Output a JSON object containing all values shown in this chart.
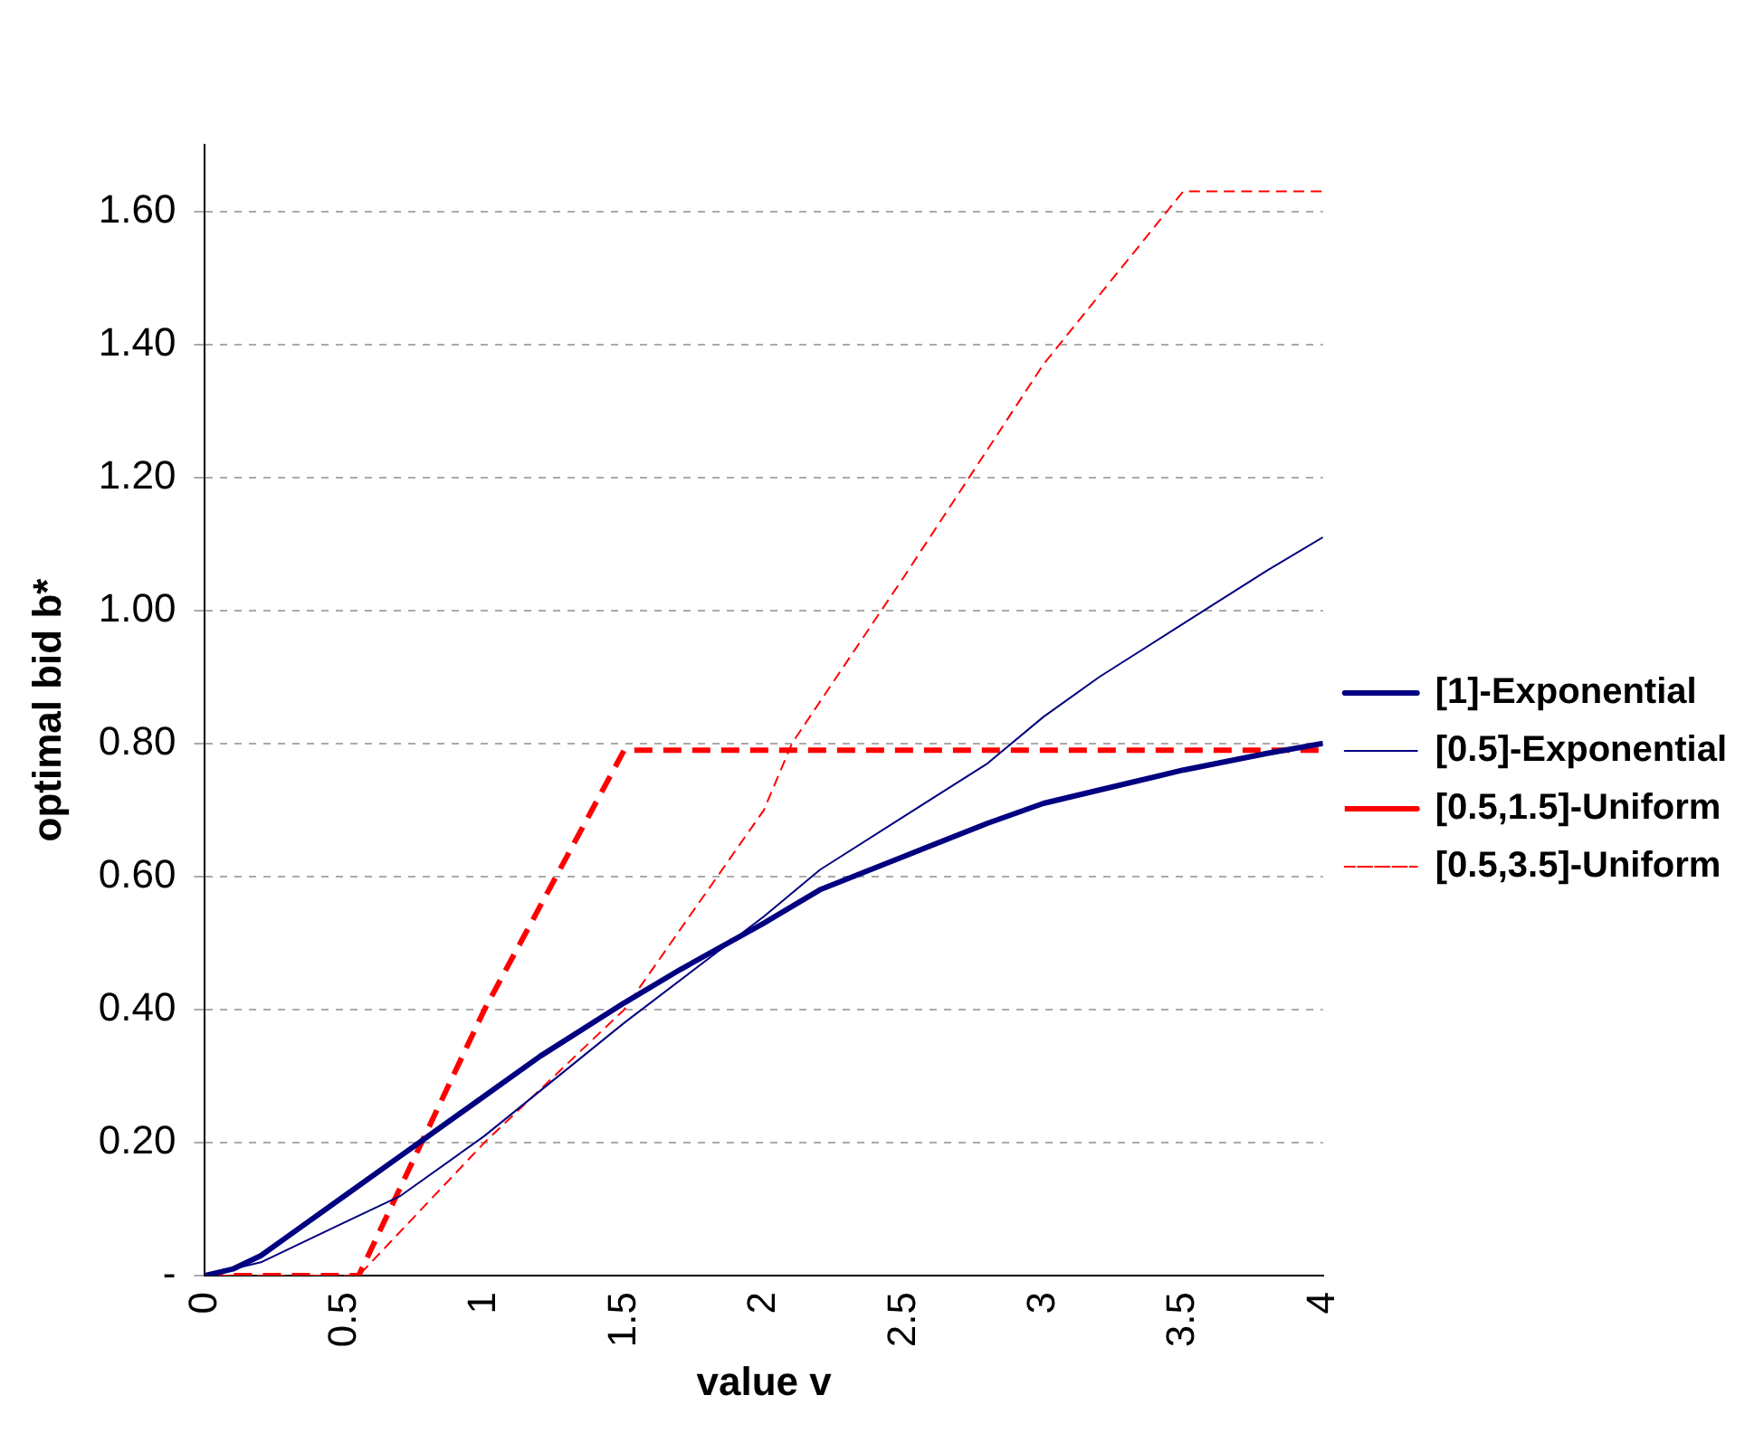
{
  "chart_data": {
    "type": "line",
    "xlabel": "value v",
    "ylabel": "optimal bid b*",
    "xlim": [
      0,
      4
    ],
    "xticks": [
      0,
      0.5,
      1,
      1.5,
      2,
      2.5,
      3,
      3.5,
      4
    ],
    "ylim": [
      0,
      1.7
    ],
    "yticks": [
      {
        "value": 0,
        "label": "-"
      },
      {
        "value": 0.2,
        "label": "0.20"
      },
      {
        "value": 0.4,
        "label": "0.40"
      },
      {
        "value": 0.6,
        "label": "0.60"
      },
      {
        "value": 0.8,
        "label": "0.80"
      },
      {
        "value": 1.0,
        "label": "1.00"
      },
      {
        "value": 1.2,
        "label": "1.20"
      },
      {
        "value": 1.4,
        "label": "1.40"
      },
      {
        "value": 1.6,
        "label": "1.60"
      }
    ],
    "grid": "y",
    "legend": "right",
    "marker": "none",
    "series": [
      {
        "name": "[1]-Exponential",
        "color": "#000080",
        "line_style": "solid",
        "x": [
          0,
          0.1,
          0.2,
          0.3,
          0.5,
          0.7,
          1,
          1.2,
          1.5,
          1.7,
          2,
          2.2,
          2.5,
          2.8,
          3,
          3.2,
          3.5,
          3.8,
          4
        ],
        "values": [
          0,
          0.01,
          0.03,
          0.06,
          0.12,
          0.18,
          0.27,
          0.33,
          0.41,
          0.46,
          0.53,
          0.58,
          0.63,
          0.68,
          0.71,
          0.73,
          0.76,
          0.785,
          0.8
        ]
      },
      {
        "name": "[0.5]-Exponential",
        "color": "#000080",
        "line_style": "solid",
        "x": [
          0,
          0.2,
          0.3,
          0.5,
          0.7,
          1,
          1.5,
          2,
          2.2,
          2.5,
          2.8,
          3,
          3.2,
          3.5,
          3.8,
          4
        ],
        "values": [
          0,
          0.02,
          0.04,
          0.08,
          0.12,
          0.21,
          0.38,
          0.54,
          0.61,
          0.69,
          0.77,
          0.84,
          0.9,
          0.98,
          1.06,
          1.11
        ]
      },
      {
        "name": "[0.5,1.5]-Uniform",
        "color": "#ff0000",
        "line_style": "dashed",
        "x": [
          0,
          0.55,
          1,
          1.5,
          4
        ],
        "values": [
          0,
          0,
          0.4,
          0.79,
          0.79
        ]
      },
      {
        "name": "[0.5,3.5]-Uniform",
        "color": "#ff0000",
        "line_style": "dashed",
        "x": [
          0,
          0.55,
          1,
          1.5,
          2,
          2.1,
          2.5,
          3,
          3.5,
          4
        ],
        "values": [
          0,
          0,
          0.2,
          0.4,
          0.7,
          0.8,
          1.05,
          1.37,
          1.63,
          1.63
        ]
      }
    ]
  }
}
